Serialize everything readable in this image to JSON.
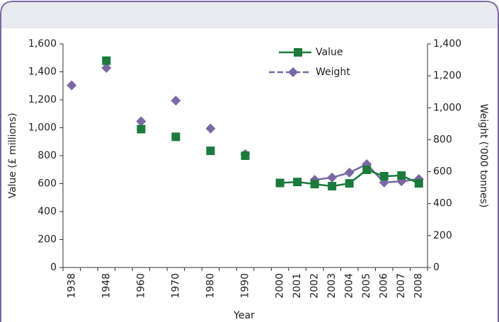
{
  "chart_data": {
    "type": "line",
    "x_label": "Year",
    "y_label": "Value (£ millions)",
    "y2_label": "Weight ('000 tonnes)",
    "categories": [
      "1938",
      null,
      "1948",
      null,
      "1960",
      null,
      "1970",
      null,
      "1980",
      null,
      "1990",
      null,
      "2000",
      "2001",
      "2002",
      "2003",
      "2004",
      "2005",
      "2006",
      "2007",
      "2008"
    ],
    "series": [
      {
        "name": "Value",
        "color": "#1b7a3c",
        "marker": "square",
        "axis": "y",
        "values": [
          null,
          null,
          1480,
          null,
          990,
          null,
          935,
          null,
          835,
          null,
          800,
          null,
          605,
          612,
          597,
          582,
          602,
          699,
          653,
          658,
          602
        ]
      },
      {
        "name": "Weight",
        "color": "#7a67a3",
        "marker": "diamond",
        "axis": "y2",
        "values": [
          1140,
          null,
          1250,
          null,
          915,
          null,
          1045,
          null,
          870,
          null,
          710,
          null,
          null,
          null,
          549,
          563,
          594,
          647,
          532,
          540,
          554
        ]
      }
    ],
    "ylim": [
      0,
      1600
    ],
    "yticks": [
      0,
      200,
      400,
      600,
      800,
      {
        "value": 1000,
        "label": "1,000"
      },
      {
        "value": 1200,
        "label": "1,200"
      },
      {
        "value": 1400,
        "label": "1,400"
      },
      {
        "value": 1600,
        "label": "1,600"
      }
    ],
    "y2lim": [
      0,
      1400
    ],
    "y2ticks": [
      0,
      200,
      400,
      600,
      800,
      {
        "value": 1000,
        "label": "1,000"
      },
      {
        "value": 1200,
        "label": "1,200"
      },
      {
        "value": 1400,
        "label": "1,400"
      }
    ],
    "legend": "top",
    "grid": false
  }
}
